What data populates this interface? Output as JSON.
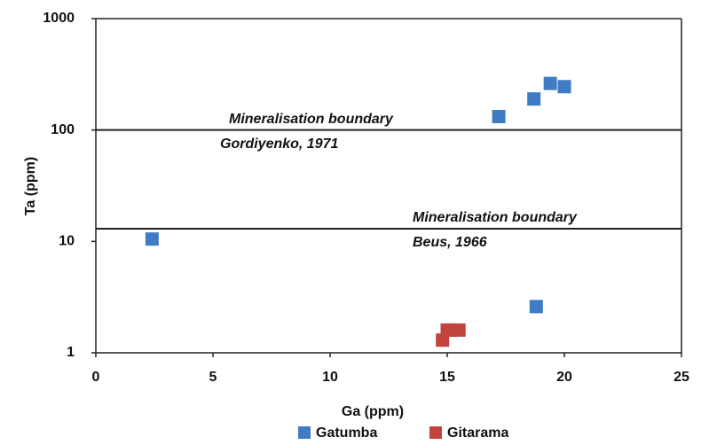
{
  "chart_data": {
    "type": "scatter",
    "xlabel": "Ga (ppm)",
    "ylabel": "Ta (ppm)",
    "xlim": [
      0,
      25
    ],
    "xticks": [
      0,
      5,
      10,
      15,
      20,
      25
    ],
    "ylim": [
      1,
      1000
    ],
    "yticks": [
      1,
      10,
      100,
      1000
    ],
    "yscale": "log",
    "legend": "bottom",
    "series": [
      {
        "name": "Gatumba",
        "color": "#3f7cc4",
        "x": [
          2.4,
          17.2,
          18.7,
          19.4,
          20.0,
          18.8
        ],
        "values": [
          10.5,
          132,
          190,
          262,
          245,
          2.6
        ]
      },
      {
        "name": "Gitarama",
        "color": "#c0433e",
        "x": [
          14.8,
          15.0,
          15.2,
          15.5
        ],
        "values": [
          1.3,
          1.6,
          1.6,
          1.6
        ]
      }
    ],
    "hlines": [
      {
        "value": 100,
        "label": "Mineralisation boundary",
        "source": "Gordiyenko, 1971"
      },
      {
        "value": 13,
        "label": "Mineralisation boundary",
        "source": "Beus, 1966"
      }
    ]
  }
}
